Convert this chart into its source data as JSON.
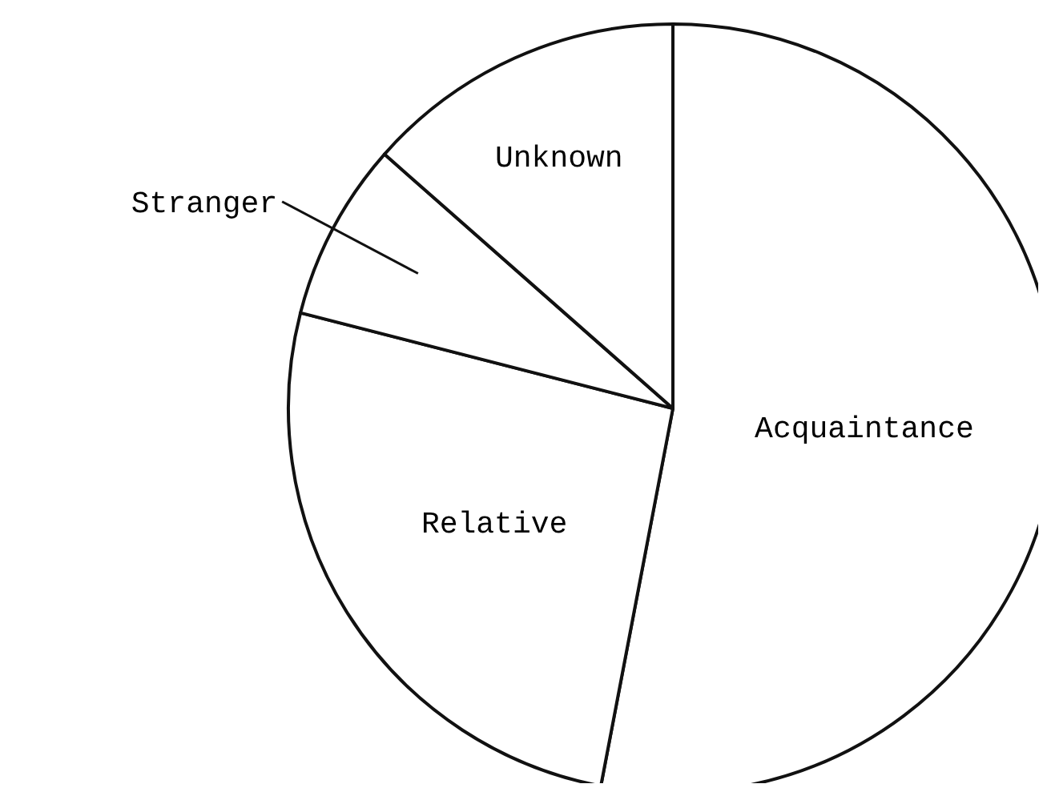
{
  "chart_data": {
    "type": "pie",
    "categories": [
      "Acquaintance",
      "Relative",
      "Stranger",
      "Unknown"
    ],
    "values": [
      53,
      26,
      7.5,
      13.5
    ],
    "colors": [
      "#ffffff",
      "#ffffff",
      "#ffffff",
      "#ffffff"
    ]
  }
}
